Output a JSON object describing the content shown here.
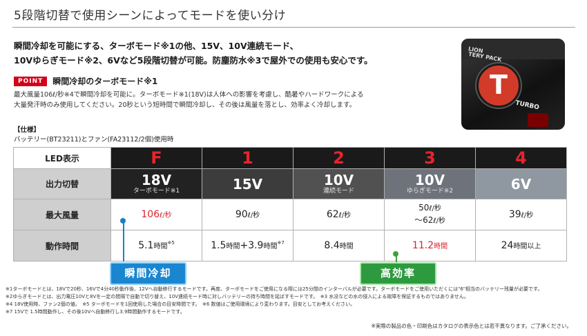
{
  "title": "5段階切替で使用シーンによってモードを使い分け",
  "intro": {
    "line1": "瞬間冷却を可能にする、ターボモード※1の他、15V、10V連続モード、",
    "line2": "10Vゆらぎモード※2、6Vなど5段階切替が可能。防塵防水※3で屋外での使用も安心です。"
  },
  "point": {
    "badge": "POINT",
    "title": "瞬間冷却のターボモード※1",
    "desc1": "最大風量106ℓ/秒※4で瞬間冷却を可能に。ターボモード※1(18V)は人体への影響を考慮し、酷暑やハードワークによる",
    "desc2": "大量発汗時のみ使用してください。20秒という短時間で瞬間冷却し、その後は風量を落とし、効率よく冷却します。"
  },
  "spec": {
    "label": "【仕様】",
    "sub": "バッテリー(BT23211)とファン(FA23112/2個)使用時"
  },
  "product": {
    "text1": "LION",
    "text2": "TERY PACK",
    "letter": "T",
    "turbo": "TURBO"
  },
  "table": {
    "row_labels": {
      "led": "LED表示",
      "mode": "出力切替",
      "airflow": "最大風量",
      "time": "動作時間"
    },
    "columns": [
      {
        "led": "F",
        "mode": "18V",
        "mode_sub": "ターボモード※1",
        "color": "#222222",
        "airflow": "106",
        "airflow_unit": "ℓ/秒",
        "airflow2": "",
        "airflow2_unit": "",
        "time": "5.1",
        "time_unit": "時間",
        "time2": "",
        "time2_unit": "",
        "time_sup": "※5"
      },
      {
        "led": "1",
        "mode": "15V",
        "mode_sub": "",
        "color": "#3c3c3c",
        "airflow": "90",
        "airflow_unit": "ℓ/秒",
        "airflow2": "",
        "airflow2_unit": "",
        "time": "1.5",
        "time_unit": "時間",
        "time2": "+3.9",
        "time2_unit": "時間",
        "time_sup": "※7"
      },
      {
        "led": "2",
        "mode": "10V",
        "mode_sub": "連続モード",
        "color": "#515151",
        "airflow": "62",
        "airflow_unit": "ℓ/秒",
        "airflow2": "",
        "airflow2_unit": "",
        "time": "8.4",
        "time_unit": "時間",
        "time2": "",
        "time2_unit": "",
        "time_sup": ""
      },
      {
        "led": "3",
        "mode": "10V",
        "mode_sub": "ゆらぎモード※2",
        "color": "#6e737b",
        "airflow": "50",
        "airflow_unit": "ℓ/秒",
        "airflow2": "〜62",
        "airflow2_unit": "ℓ/秒",
        "time": "11.2",
        "time_unit": "時間",
        "time2": "",
        "time2_unit": "",
        "time_sup": ""
      },
      {
        "led": "4",
        "mode": "6V",
        "mode_sub": "",
        "color": "#8f97a1",
        "airflow": "39",
        "airflow_unit": "ℓ/秒",
        "airflow2": "",
        "airflow2_unit": "",
        "time": "24",
        "time_unit": "時間以上",
        "time2": "",
        "time2_unit": "",
        "time_sup": ""
      }
    ]
  },
  "callouts": {
    "blue": "瞬間冷却",
    "green": "高効率"
  },
  "notes": [
    "※1ターボモードとは、18Vで20秒、16Vで4分40秒動作後、12Vへ自動移行するモードです。再度、ターボモードをご使用になる際には25分間のインターバルが必要です。ターボモードをご使用いただくには\"6\"相当のバッテリー残量が必要です。",
    "※2ゆらぎモードとは、出力電圧10Vと8Vを一定の間隔で自動で切り替え、10V連続モード時に対しバッテリーの持ち時間を延ばすモードです。　※3 水没などの水の侵入による故障を保証するものではありません。",
    "※4 18V使用時、ファン2個の値。　※5 ターボモードを1回使用した場合の目安時間です。　※6 数値はご使用環境により変わります。目安としてお考えください。",
    "※7 15Vで 1.5時間動作し、その後10Vへ自動移行し3.9時間動作するモードです。"
  ],
  "footer_note": "※実際の製品の色・印刷色はカタログの表示色とは若干異なります。ご了承ください。"
}
